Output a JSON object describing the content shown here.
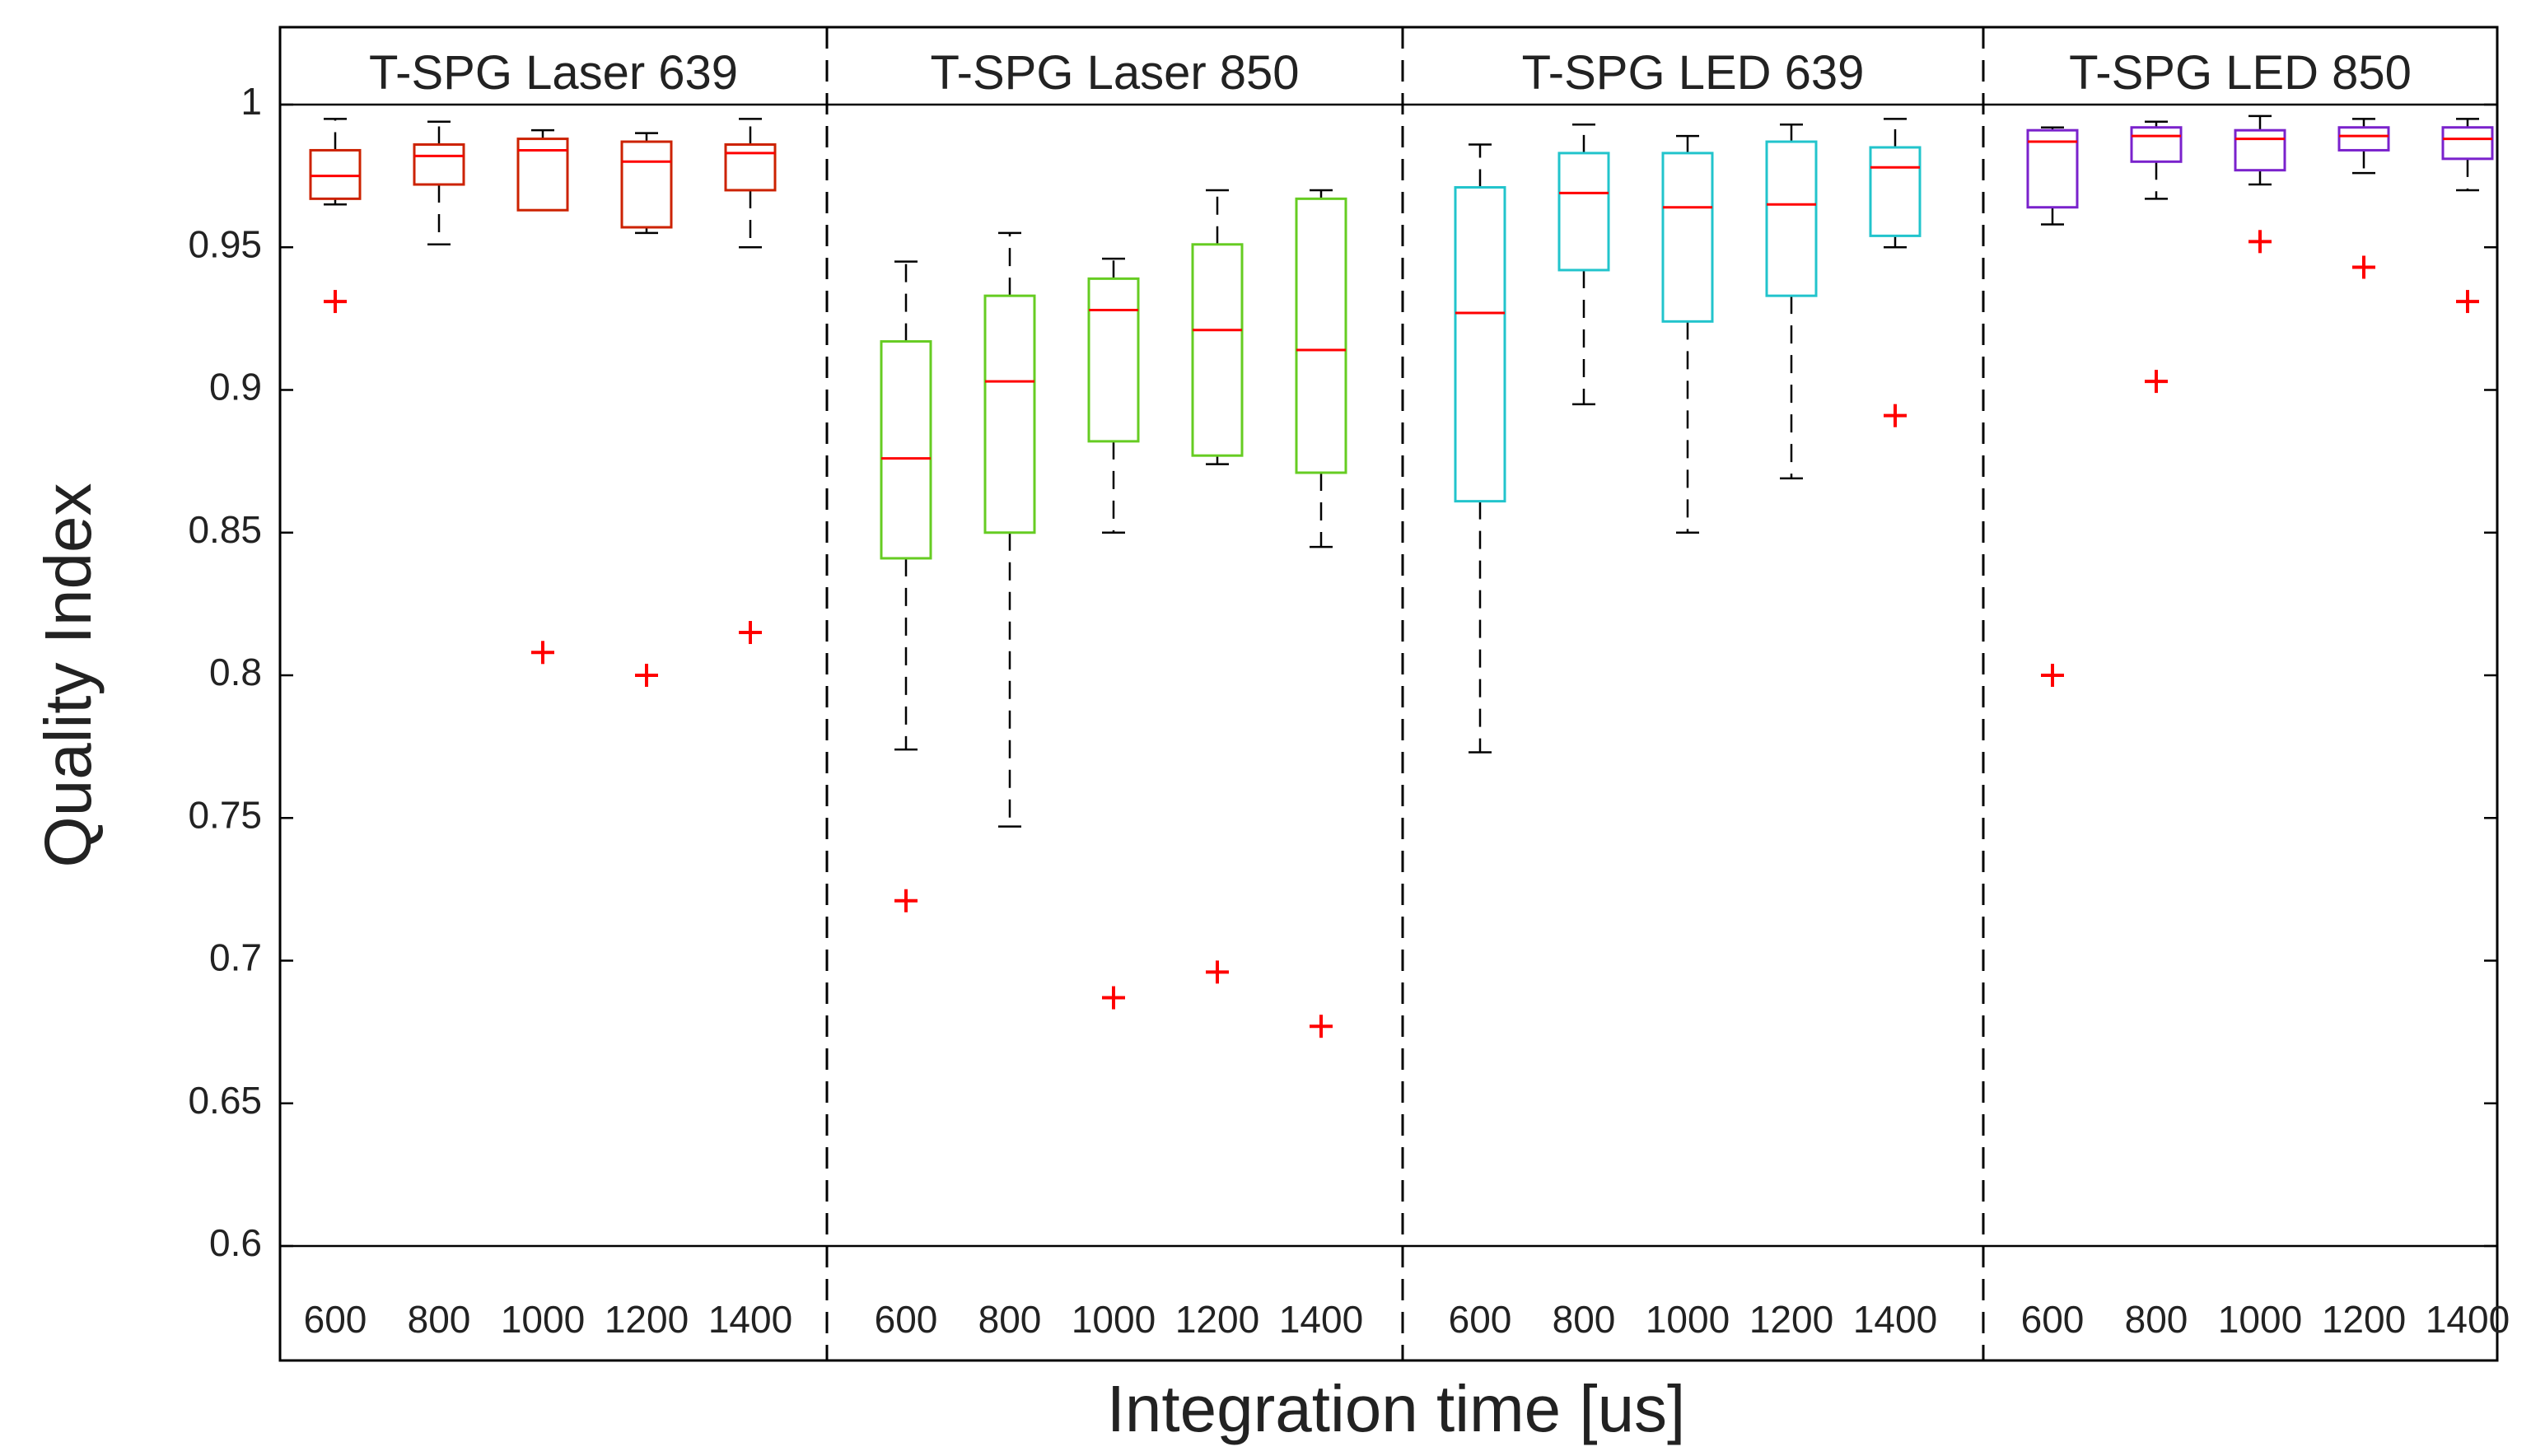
{
  "chart_data": {
    "type": "box",
    "xlabel": "Integration time [us]",
    "ylabel": "Quality Index",
    "ylim": [
      0.6,
      1.0
    ],
    "yticks": [
      1,
      0.95,
      0.9,
      0.85,
      0.8,
      0.75,
      0.7,
      0.65,
      0.6
    ],
    "ytick_labels": [
      "1",
      "0.95",
      "0.9",
      "0.85",
      "0.8",
      "0.75",
      "0.7",
      "0.65",
      "0.6"
    ],
    "median_color": "#ff0000",
    "outlier_color": "#ff0000",
    "whisker_color": "#000000",
    "panels": [
      {
        "title": "T-SPG Laser 639",
        "box_color": "#cc2200",
        "categories": [
          "600",
          "800",
          "1000",
          "1200",
          "1400"
        ],
        "boxes": [
          {
            "whislo": 0.965,
            "q1": 0.967,
            "med": 0.975,
            "q3": 0.984,
            "whishi": 0.995,
            "fliers": [
              0.931
            ]
          },
          {
            "whislo": 0.951,
            "q1": 0.972,
            "med": 0.982,
            "q3": 0.986,
            "whishi": 0.994,
            "fliers": []
          },
          {
            "whislo": 0.963,
            "q1": 0.963,
            "med": 0.984,
            "q3": 0.988,
            "whishi": 0.991,
            "fliers": [
              0.808
            ]
          },
          {
            "whislo": 0.955,
            "q1": 0.957,
            "med": 0.98,
            "q3": 0.987,
            "whishi": 0.99,
            "fliers": [
              0.8
            ]
          },
          {
            "whislo": 0.95,
            "q1": 0.97,
            "med": 0.983,
            "q3": 0.986,
            "whishi": 0.995,
            "fliers": [
              0.815
            ]
          }
        ]
      },
      {
        "title": "T-SPG Laser 850",
        "box_color": "#66cc22",
        "categories": [
          "600",
          "800",
          "1000",
          "1200",
          "1400"
        ],
        "boxes": [
          {
            "whislo": 0.774,
            "q1": 0.841,
            "med": 0.876,
            "q3": 0.917,
            "whishi": 0.945,
            "fliers": [
              0.721
            ]
          },
          {
            "whislo": 0.747,
            "q1": 0.85,
            "med": 0.903,
            "q3": 0.933,
            "whishi": 0.955,
            "fliers": []
          },
          {
            "whislo": 0.85,
            "q1": 0.882,
            "med": 0.928,
            "q3": 0.939,
            "whishi": 0.946,
            "fliers": [
              0.687
            ]
          },
          {
            "whislo": 0.874,
            "q1": 0.877,
            "med": 0.921,
            "q3": 0.951,
            "whishi": 0.97,
            "fliers": [
              0.696
            ]
          },
          {
            "whislo": 0.845,
            "q1": 0.871,
            "med": 0.914,
            "q3": 0.967,
            "whishi": 0.97,
            "fliers": [
              0.677
            ]
          }
        ]
      },
      {
        "title": "T-SPG LED 639",
        "box_color": "#22c4cc",
        "categories": [
          "600",
          "800",
          "1000",
          "1200",
          "1400"
        ],
        "boxes": [
          {
            "whislo": 0.773,
            "q1": 0.861,
            "med": 0.927,
            "q3": 0.971,
            "whishi": 0.986,
            "fliers": []
          },
          {
            "whislo": 0.895,
            "q1": 0.942,
            "med": 0.969,
            "q3": 0.983,
            "whishi": 0.993,
            "fliers": []
          },
          {
            "whislo": 0.85,
            "q1": 0.924,
            "med": 0.964,
            "q3": 0.983,
            "whishi": 0.989,
            "fliers": []
          },
          {
            "whislo": 0.869,
            "q1": 0.933,
            "med": 0.965,
            "q3": 0.987,
            "whishi": 0.993,
            "fliers": []
          },
          {
            "whislo": 0.95,
            "q1": 0.954,
            "med": 0.978,
            "q3": 0.985,
            "whishi": 0.995,
            "fliers": [
              0.891
            ]
          }
        ]
      },
      {
        "title": "T-SPG LED 850",
        "box_color": "#7a22cc",
        "categories": [
          "600",
          "800",
          "1000",
          "1200",
          "1400"
        ],
        "boxes": [
          {
            "whislo": 0.958,
            "q1": 0.964,
            "med": 0.987,
            "q3": 0.991,
            "whishi": 0.992,
            "fliers": [
              0.8
            ]
          },
          {
            "whislo": 0.967,
            "q1": 0.98,
            "med": 0.989,
            "q3": 0.992,
            "whishi": 0.994,
            "fliers": [
              0.903
            ]
          },
          {
            "whislo": 0.972,
            "q1": 0.977,
            "med": 0.988,
            "q3": 0.991,
            "whishi": 0.996,
            "fliers": [
              0.952
            ]
          },
          {
            "whislo": 0.976,
            "q1": 0.984,
            "med": 0.989,
            "q3": 0.992,
            "whishi": 0.995,
            "fliers": [
              0.943
            ]
          },
          {
            "whislo": 0.97,
            "q1": 0.981,
            "med": 0.988,
            "q3": 0.992,
            "whishi": 0.995,
            "fliers": [
              0.931
            ]
          }
        ]
      }
    ]
  }
}
